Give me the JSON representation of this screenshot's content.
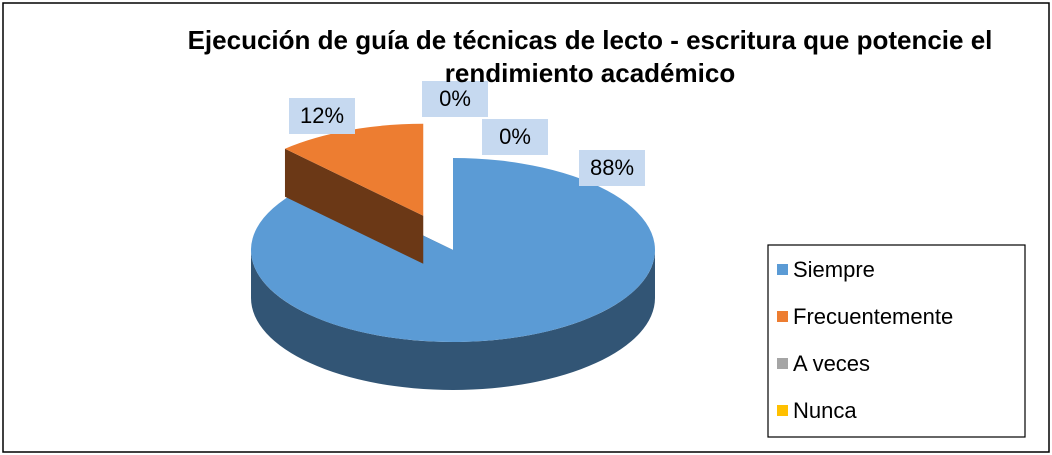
{
  "chart_data": {
    "type": "pie",
    "title": "Ejecución de guía de técnicas de lecto - escritura que potencie el rendimiento académico",
    "categories": [
      "Siempre",
      "Frecuentemente",
      "A veces",
      "Nunca"
    ],
    "values": [
      88,
      12,
      0,
      0
    ],
    "value_labels": [
      "88%",
      "12%",
      "0%",
      "0%"
    ],
    "colors": [
      "#5b9bd5",
      "#ed7d31",
      "#a5a5a5",
      "#ffc000"
    ],
    "legend": "right"
  }
}
